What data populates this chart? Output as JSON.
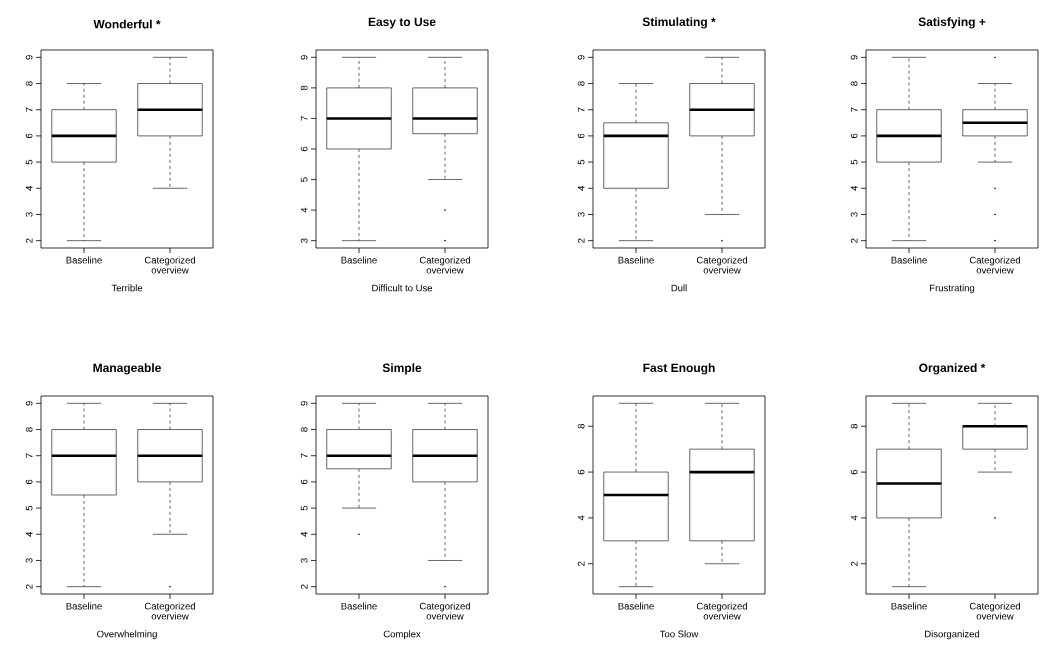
{
  "chart_data": [
    {
      "type": "box",
      "title": "Wonderful *",
      "xlabel": "Terrible",
      "categories": [
        "Baseline",
        "Categorized overview"
      ],
      "ylim": [
        1.72,
        9.28
      ],
      "yticks": [
        2,
        3,
        4,
        5,
        6,
        7,
        8,
        9
      ],
      "boxes": [
        {
          "low": 2,
          "q1": 5,
          "median": 6,
          "q3": 7,
          "high": 8
        },
        {
          "low": 4,
          "q1": 6,
          "median": 7,
          "q3": 8,
          "high": 9
        }
      ]
    },
    {
      "type": "box",
      "title": "Easy to Use",
      "xlabel": "Difficult to Use",
      "categories": [
        "Baseline",
        "Categorized overview"
      ],
      "ylim": [
        2.76,
        9.24
      ],
      "yticks": [
        3,
        4,
        5,
        6,
        7,
        8,
        9
      ],
      "boxes": [
        {
          "low": 3,
          "q1": 6,
          "median": 7,
          "q3": 8,
          "high": 9
        },
        {
          "low": 5,
          "q1": 6.5,
          "median": 7,
          "q3": 8,
          "high": 9,
          "outliers": [
            4,
            3
          ]
        }
      ]
    },
    {
      "type": "box",
      "title": "Stimulating *",
      "xlabel": "Dull",
      "categories": [
        "Baseline",
        "Categorized overview"
      ],
      "ylim": [
        1.72,
        9.28
      ],
      "yticks": [
        2,
        3,
        4,
        5,
        6,
        7,
        8,
        9
      ],
      "boxes": [
        {
          "low": 2,
          "q1": 4,
          "median": 6,
          "q3": 6.5,
          "high": 8
        },
        {
          "low": 3,
          "q1": 6,
          "median": 7,
          "q3": 8,
          "high": 9,
          "outliers": [
            2
          ]
        }
      ]
    },
    {
      "type": "box",
      "title": "Satisfying +",
      "xlabel": "Frustrating",
      "categories": [
        "Baseline",
        "Categorized overview"
      ],
      "ylim": [
        1.72,
        9.28
      ],
      "yticks": [
        2,
        3,
        4,
        5,
        6,
        7,
        8,
        9
      ],
      "boxes": [
        {
          "low": 2,
          "q1": 5,
          "median": 6,
          "q3": 7,
          "high": 9
        },
        {
          "low": 5,
          "q1": 6,
          "median": 6.5,
          "q3": 7,
          "high": 8,
          "outliers": [
            9,
            4,
            3,
            2
          ]
        }
      ]
    },
    {
      "type": "box",
      "title": "Manageable",
      "xlabel": "Overwhelming",
      "categories": [
        "Baseline",
        "Categorized overview"
      ],
      "ylim": [
        1.72,
        9.28
      ],
      "yticks": [
        2,
        3,
        4,
        5,
        6,
        7,
        8,
        9
      ],
      "boxes": [
        {
          "low": 2,
          "q1": 5.5,
          "median": 7,
          "q3": 8,
          "high": 9
        },
        {
          "low": 4,
          "q1": 6,
          "median": 7,
          "q3": 8,
          "high": 9,
          "outliers": [
            2
          ]
        }
      ]
    },
    {
      "type": "box",
      "title": "Simple",
      "xlabel": "Complex",
      "categories": [
        "Baseline",
        "Categorized overview"
      ],
      "ylim": [
        1.72,
        9.28
      ],
      "yticks": [
        2,
        3,
        4,
        5,
        6,
        7,
        8,
        9
      ],
      "boxes": [
        {
          "low": 5,
          "q1": 6.5,
          "median": 7,
          "q3": 8,
          "high": 9,
          "outliers": [
            4
          ]
        },
        {
          "low": 3,
          "q1": 6,
          "median": 7,
          "q3": 8,
          "high": 9,
          "outliers": [
            2
          ]
        }
      ]
    },
    {
      "type": "box",
      "title": "Fast Enough",
      "xlabel": "Too Slow",
      "categories": [
        "Baseline",
        "Categorized overview"
      ],
      "ylim": [
        0.68,
        9.32
      ],
      "yticks": [
        2,
        4,
        6,
        8
      ],
      "boxes": [
        {
          "low": 1,
          "q1": 3,
          "median": 5,
          "q3": 6,
          "high": 9
        },
        {
          "low": 2,
          "q1": 3,
          "median": 6,
          "q3": 7,
          "high": 9
        }
      ]
    },
    {
      "type": "box",
      "title": "Organized *",
      "xlabel": "Disorganized",
      "categories": [
        "Baseline",
        "Categorized overview"
      ],
      "ylim": [
        0.68,
        9.32
      ],
      "yticks": [
        2,
        4,
        6,
        8
      ],
      "boxes": [
        {
          "low": 1,
          "q1": 4,
          "median": 5.5,
          "q3": 7,
          "high": 9
        },
        {
          "low": 6,
          "q1": 7,
          "median": 8,
          "q3": 8,
          "high": 9,
          "outliers": [
            4
          ]
        }
      ]
    }
  ]
}
